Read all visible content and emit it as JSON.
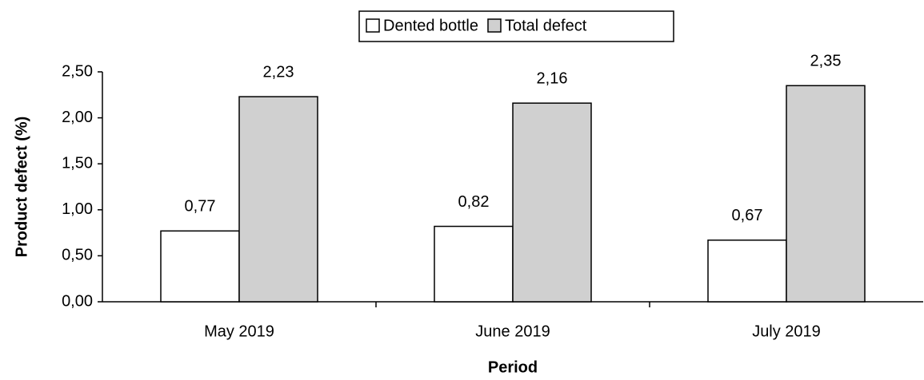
{
  "chart_data": {
    "type": "bar",
    "categories": [
      "May 2019",
      "June 2019",
      "July 2019"
    ],
    "series": [
      {
        "name": "Dented bottle",
        "color": "#ffffff",
        "values": [
          0.77,
          0.82,
          0.67
        ],
        "value_labels": [
          "0,77",
          "0,82",
          "0,67"
        ]
      },
      {
        "name": "Total defect",
        "color": "#d0d0d0",
        "values": [
          2.23,
          2.16,
          2.35
        ],
        "value_labels": [
          "2,23",
          "2,16",
          "2,35"
        ]
      }
    ],
    "ylim": [
      0,
      2.5
    ],
    "yticks": [
      {
        "value": 0,
        "label": "0,00"
      },
      {
        "value": 0.5,
        "label": "0,50"
      },
      {
        "value": 1,
        "label": "1,00"
      },
      {
        "value": 1.5,
        "label": "1,50"
      },
      {
        "value": 2,
        "label": "2,00"
      },
      {
        "value": 2.5,
        "label": "2,50"
      }
    ],
    "y_label": "Product defect (%)",
    "x_label": "Period",
    "legend": "top"
  }
}
